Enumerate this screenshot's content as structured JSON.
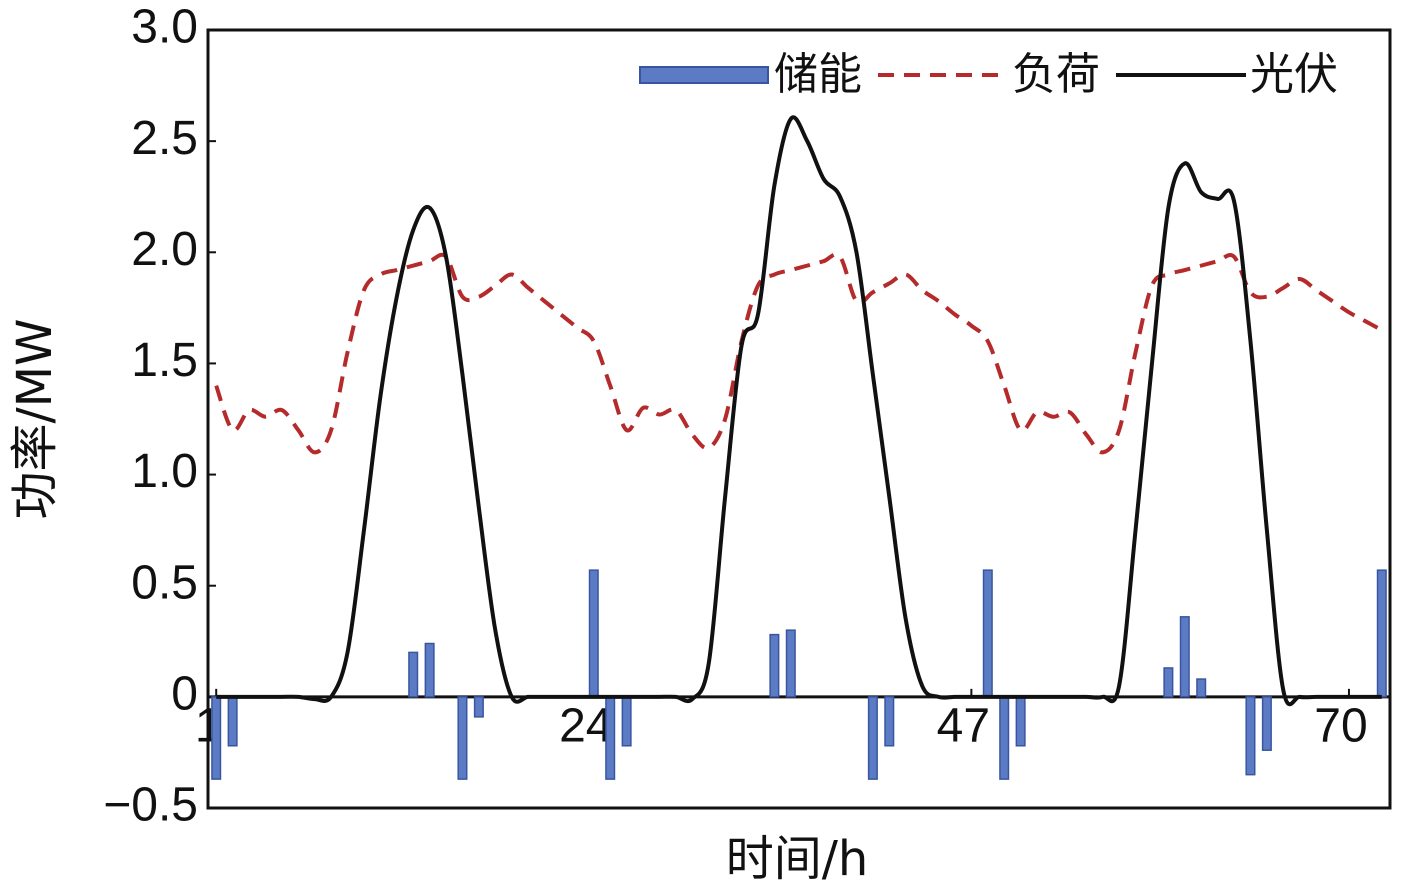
{
  "chart_data": {
    "type": "bar_line",
    "xlabel": "时间/h",
    "ylabel": "功率/MW",
    "xlim": [
      0.5,
      72.5
    ],
    "xticks": [
      1,
      24,
      47,
      70
    ],
    "ylim": [
      -0.5,
      3
    ],
    "yticks": [
      {
        "value": -0.5,
        "label": "−0.5"
      },
      0,
      0.5,
      {
        "value": 1,
        "label": "1.0"
      },
      1.5,
      {
        "value": 2,
        "label": "2.0"
      },
      2.5,
      {
        "value": 3,
        "label": "3.0"
      }
    ],
    "legend": "upper right",
    "x": [
      1,
      2,
      3,
      4,
      5,
      6,
      7,
      8,
      9,
      10,
      11,
      12,
      13,
      14,
      15,
      16,
      17,
      18,
      19,
      20,
      21,
      22,
      23,
      24,
      25,
      26,
      27,
      28,
      29,
      30,
      31,
      32,
      33,
      34,
      35,
      36,
      37,
      38,
      39,
      40,
      41,
      42,
      43,
      44,
      45,
      46,
      47,
      48,
      49,
      50,
      51,
      52,
      53,
      54,
      55,
      56,
      57,
      58,
      59,
      60,
      61,
      62,
      63,
      64,
      65,
      66,
      67,
      68,
      69,
      70,
      71,
      72
    ],
    "series": [
      {
        "name": "储能",
        "kind": "bar",
        "color": "#5b7cc4",
        "values": [
          -0.37,
          -0.22,
          0,
          0,
          0,
          0,
          0,
          0,
          0,
          0,
          0,
          0,
          0.2,
          0.24,
          0,
          -0.37,
          -0.09,
          0,
          0,
          0,
          0,
          0,
          0,
          0.57,
          -0.37,
          -0.22,
          0,
          0,
          0,
          0,
          0,
          0,
          0,
          0,
          0.28,
          0.3,
          0,
          0,
          0,
          0,
          -0.37,
          -0.22,
          0,
          0,
          0,
          0,
          0,
          0.57,
          -0.37,
          -0.22,
          0,
          0,
          0,
          0,
          0,
          0,
          0,
          0,
          0.13,
          0.36,
          0.08,
          0,
          0,
          -0.35,
          -0.24,
          0,
          0,
          0,
          0,
          0,
          0,
          0.57
        ]
      },
      {
        "name": "负荷",
        "kind": "dashed",
        "color": "#b52a2a",
        "values": [
          1.4,
          1.2,
          1.29,
          1.26,
          1.29,
          1.2,
          1.1,
          1.2,
          1.55,
          1.83,
          1.9,
          1.92,
          1.94,
          1.96,
          1.98,
          1.8,
          1.8,
          1.85,
          1.9,
          1.84,
          1.78,
          1.72,
          1.66,
          1.6,
          1.4,
          1.2,
          1.3,
          1.27,
          1.29,
          1.18,
          1.12,
          1.25,
          1.6,
          1.85,
          1.9,
          1.92,
          1.94,
          1.96,
          1.98,
          1.78,
          1.82,
          1.86,
          1.9,
          1.83,
          1.78,
          1.72,
          1.67,
          1.6,
          1.4,
          1.2,
          1.28,
          1.26,
          1.28,
          1.18,
          1.1,
          1.2,
          1.55,
          1.85,
          1.9,
          1.92,
          1.94,
          1.96,
          1.98,
          1.82,
          1.8,
          1.84,
          1.88,
          1.83,
          1.78,
          1.73,
          1.69,
          1.65
        ]
      },
      {
        "name": "光伏",
        "kind": "solid",
        "color": "#111111",
        "values": [
          0,
          0,
          0,
          0,
          0,
          0,
          -0.01,
          0,
          0.2,
          0.75,
          1.35,
          1.8,
          2.1,
          2.2,
          1.98,
          1.45,
          0.85,
          0.3,
          0,
          0,
          0,
          0,
          0,
          0,
          0,
          0,
          0,
          0,
          0,
          -0.01,
          0.15,
          0.9,
          1.58,
          1.72,
          2.3,
          2.6,
          2.5,
          2.33,
          2.25,
          2.0,
          1.45,
          0.9,
          0.35,
          0.05,
          0,
          0,
          0,
          0,
          0,
          0,
          0,
          0,
          0,
          0,
          0,
          0.05,
          0.75,
          1.5,
          2.2,
          2.4,
          2.27,
          2.24,
          2.23,
          1.6,
          0.75,
          0.03,
          0,
          0,
          0,
          0,
          0,
          0
        ]
      }
    ]
  }
}
